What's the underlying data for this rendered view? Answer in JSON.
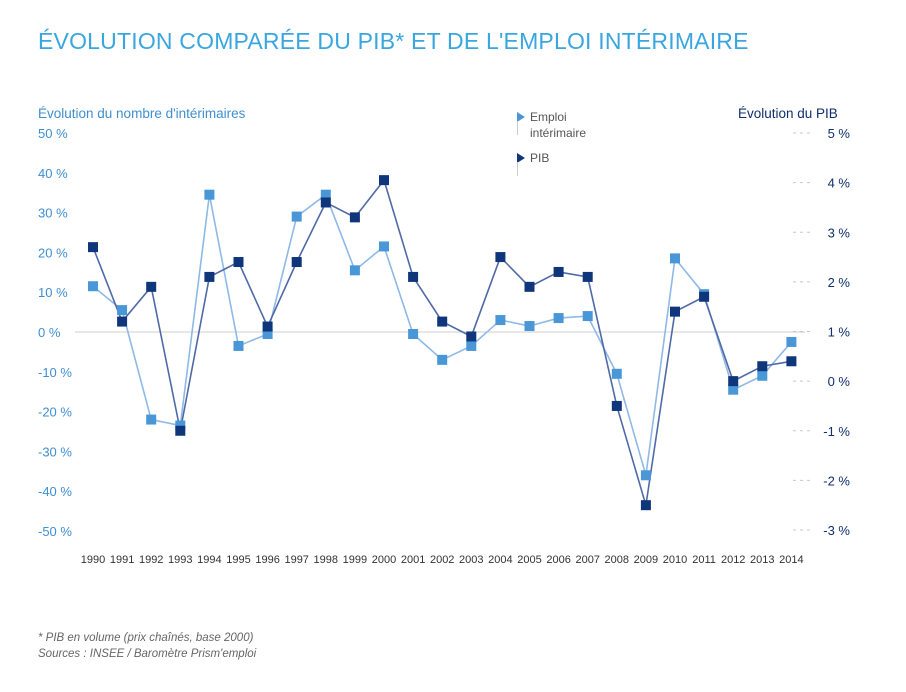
{
  "chart_data": {
    "type": "line",
    "title": "ÉVOLUTION COMPARÉE DU PIB* ET DE L'EMPLOI INTÉRIMAIRE",
    "ylabel": "Évolution du nombre d'intérimaires",
    "y2label": "Évolution du PIB",
    "ylim": [
      -50,
      50
    ],
    "y2lim": [
      -3,
      5
    ],
    "yticks": [
      "50 %",
      "40 %",
      "30 %",
      "20 %",
      "10 %",
      "0 %",
      "-10 %",
      "-20 %",
      "-30 %",
      "-40 %",
      "-50 %"
    ],
    "y2ticks": [
      "5 %",
      "4 %",
      "3 %",
      "2 %",
      "1 %",
      "0 %",
      "-1 %",
      "-2 %",
      "-3 %"
    ],
    "categories": [
      "1990",
      "1991",
      "1992",
      "1993",
      "1994",
      "1995",
      "1996",
      "1997",
      "1998",
      "1999",
      "2000",
      "2001",
      "2002",
      "2003",
      "2004",
      "2005",
      "2006",
      "2007",
      "2008",
      "2009",
      "2010",
      "2011",
      "2012",
      "2013",
      "2014"
    ],
    "legend_position": "top-right",
    "series": [
      {
        "name": "Emploi intérimaire",
        "axis": "left",
        "color": "#4a97d8",
        "values": [
          11.5,
          5.5,
          -22.0,
          -23.5,
          34.5,
          -3.5,
          -0.5,
          29.0,
          34.5,
          15.5,
          21.5,
          -0.5,
          -7.0,
          -3.5,
          3.0,
          1.5,
          3.5,
          4.0,
          -10.5,
          -36.0,
          18.5,
          9.5,
          -14.5,
          -11.0,
          -2.5
        ]
      },
      {
        "name": "PIB",
        "axis": "right",
        "color": "#0f357a",
        "values": [
          2.7,
          1.2,
          1.9,
          -1.0,
          2.1,
          2.4,
          1.1,
          2.4,
          3.6,
          3.3,
          4.05,
          2.1,
          1.2,
          0.9,
          2.5,
          1.9,
          2.2,
          2.1,
          -0.5,
          -2.5,
          1.4,
          1.7,
          0.0,
          0.3,
          0.4
        ]
      }
    ]
  },
  "legend": {
    "emploi_line1": "Emploi",
    "emploi_line2": "intérimaire",
    "pib": "PIB"
  },
  "footnote": {
    "line1": "* PIB en volume (prix chaînés, base 2000)",
    "line2": "Sources : INSEE / Baromètre Prism'emploi"
  }
}
